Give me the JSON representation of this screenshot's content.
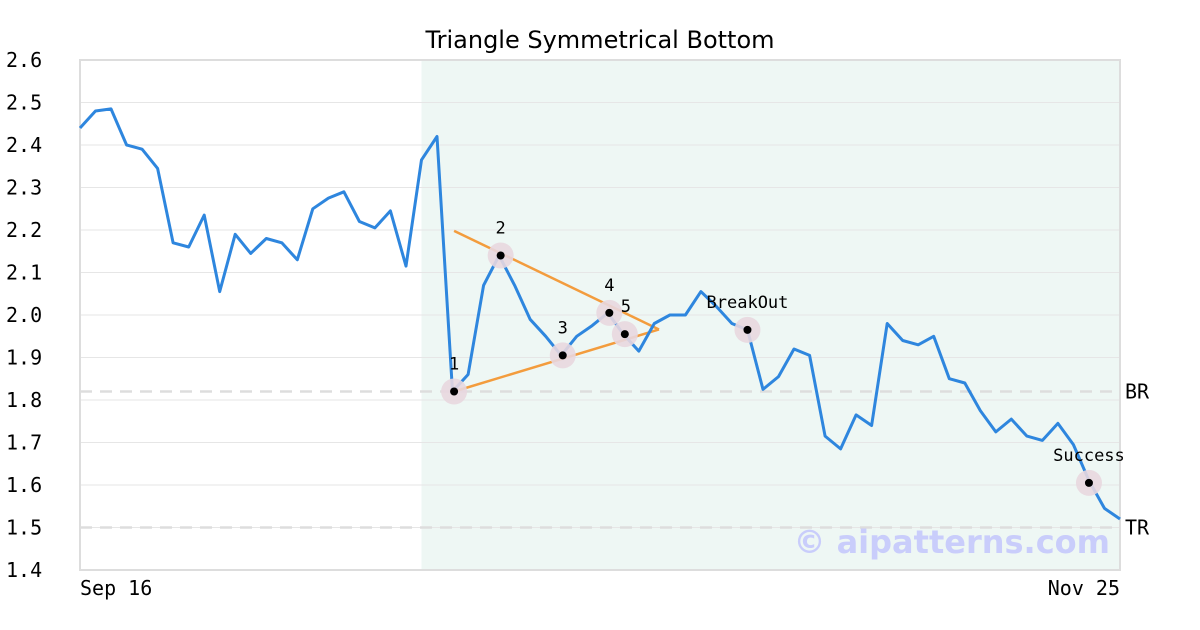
{
  "chart_data": {
    "type": "line",
    "title": "Triangle Symmetrical Bottom",
    "xlabel": "",
    "ylabel": "",
    "ylim": [
      1.4,
      2.6
    ],
    "y_ticks": [
      "1.4",
      "1.5",
      "1.6",
      "1.7",
      "1.8",
      "1.9",
      "2.0",
      "2.1",
      "2.2",
      "2.3",
      "2.4",
      "2.5",
      "2.6"
    ],
    "x_tick_labels": [
      "Sep 16",
      "Nov 25"
    ],
    "grid": "horizontal",
    "series": [
      {
        "color": "#2e86de",
        "values": [
          2.44,
          2.48,
          2.485,
          2.4,
          2.39,
          2.345,
          2.17,
          2.16,
          2.235,
          2.055,
          2.19,
          2.145,
          2.18,
          2.17,
          2.13,
          2.25,
          2.275,
          2.29,
          2.22,
          2.205,
          2.245,
          2.115,
          2.365,
          2.42,
          1.82,
          1.86,
          2.07,
          2.14,
          2.07,
          1.99,
          1.95,
          1.905,
          1.95,
          1.975,
          2.005,
          1.955,
          1.915,
          1.98,
          2.0,
          2.0,
          2.055,
          2.02,
          1.98,
          1.965,
          1.825,
          1.855,
          1.92,
          1.905,
          1.715,
          1.685,
          1.765,
          1.74,
          1.98,
          1.94,
          1.93,
          1.95,
          1.85,
          1.84,
          1.775,
          1.725,
          1.755,
          1.715,
          1.705,
          1.745,
          1.695,
          1.61,
          1.545,
          1.52
        ]
      }
    ],
    "pattern_region": {
      "start_index": 22,
      "end_index": 67
    },
    "triangle_lines": [
      {
        "color": "#f39c3d",
        "from": {
          "x": 24.1,
          "y": 2.198
        },
        "to": {
          "x": 37.3,
          "y": 1.966
        }
      },
      {
        "color": "#f39c3d",
        "from": {
          "x": 24.1,
          "y": 1.82
        },
        "to": {
          "x": 37.3,
          "y": 1.966
        }
      }
    ],
    "points": [
      {
        "label": "1",
        "x": 24.1,
        "y": 1.82
      },
      {
        "label": "2",
        "x": 27.1,
        "y": 2.14
      },
      {
        "label": "3",
        "x": 31.1,
        "y": 1.905
      },
      {
        "label": "4",
        "x": 34.1,
        "y": 2.005
      },
      {
        "label": "5",
        "x": 35.1,
        "y": 1.955
      },
      {
        "label": "BreakOut",
        "x": 43.0,
        "y": 1.965
      },
      {
        "label": "Success",
        "x": 65.0,
        "y": 1.605
      }
    ],
    "levels": [
      {
        "label": "BR",
        "y": 1.82
      },
      {
        "label": "TR",
        "y": 1.5
      }
    ],
    "watermark": "© aipatterns.com",
    "colors": {
      "line": "#2e86de",
      "triangle": "#f39c3d",
      "region": "#eef7f4",
      "marker_halo": "#e8d7df",
      "watermark": "#c9cdfb",
      "level_line": "#dddddd"
    }
  }
}
